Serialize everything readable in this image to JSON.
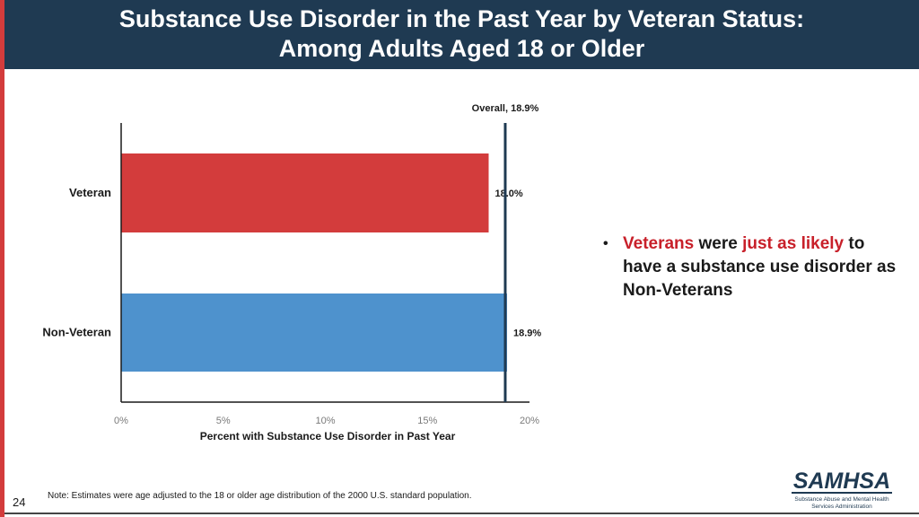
{
  "header": {
    "title_line1": "Substance Use Disorder in the Past Year by Veteran Status:",
    "title_line2": "Among Adults Aged 18 or Older"
  },
  "bullet": {
    "part1": "Veterans",
    "part2": " were ",
    "part3": "just as likely",
    "part4": " to have a substance use disorder as Non-Veterans"
  },
  "footer": {
    "note": "Note: Estimates were age adjusted to the 18 or older age distribution of the 2000 U.S. standard population.",
    "page_number": "24"
  },
  "logo": {
    "name": "SAMHSA",
    "subtitle_line1": "Substance Abuse and Mental Health",
    "subtitle_line2": "Services Administration"
  },
  "colors": {
    "header_bg": "#1f3a52",
    "veteran_bar": "#d33c3c",
    "nonveteran_bar": "#4e92cd",
    "emphasis": "#c8202a"
  },
  "chart_data": {
    "type": "bar",
    "orientation": "horizontal",
    "categories": [
      "Veteran",
      "Non-Veteran"
    ],
    "values": [
      18.0,
      18.9
    ],
    "value_labels": [
      "18.0%",
      "18.9%"
    ],
    "bar_colors": [
      "#d33c3c",
      "#4e92cd"
    ],
    "xlabel": "Percent with Substance Use Disorder in Past Year",
    "xlim": [
      0,
      20
    ],
    "xticks": [
      0,
      5,
      10,
      15,
      20
    ],
    "xtick_labels": [
      "0%",
      "5%",
      "10%",
      "15%",
      "20%"
    ],
    "reference_line": {
      "value": 18.9,
      "label": "Overall, 18.9%"
    },
    "grid": false
  }
}
